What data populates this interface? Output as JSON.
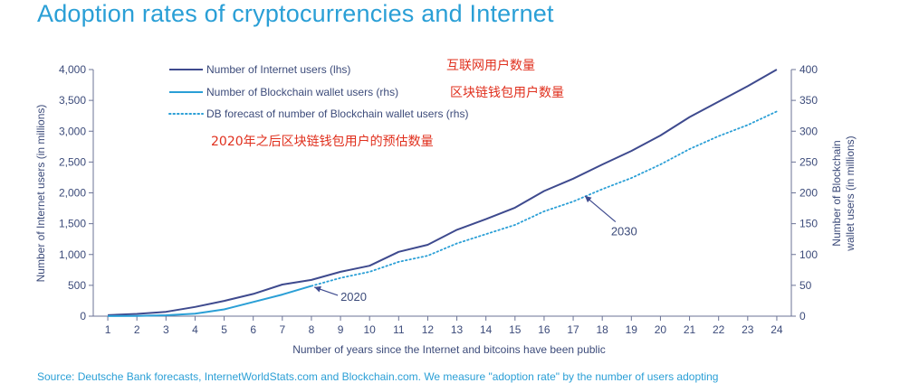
{
  "chart_data": {
    "type": "line",
    "title": "Adoption rates of cryptocurrencies and Internet",
    "xlabel": "Number of years since the Internet and bitcoins have been public",
    "ylabel_left": "Number of Internet users (in millions)",
    "ylabel_right_lines": [
      "Number of Blockchain",
      "wallet users (in millions)"
    ],
    "x": [
      1,
      2,
      3,
      4,
      5,
      6,
      7,
      8,
      9,
      10,
      11,
      12,
      13,
      14,
      15,
      16,
      17,
      18,
      19,
      20,
      21,
      22,
      23,
      24
    ],
    "y_left_lim": [
      0,
      4000
    ],
    "y_left_ticks": [
      "0",
      "500",
      "1,000",
      "1,500",
      "2,000",
      "2,500",
      "3,000",
      "3,500",
      "4,000"
    ],
    "y_right_lim": [
      0,
      400
    ],
    "y_right_ticks": [
      "0",
      "50",
      "100",
      "150",
      "200",
      "250",
      "300",
      "350",
      "400"
    ],
    "grid": false,
    "legend_position": "top-left",
    "series": [
      {
        "name": "Number of Internet users (lhs)",
        "axis": "left",
        "style": "solid",
        "color": "#3e4a8e",
        "x": [
          1,
          2,
          3,
          4,
          5,
          6,
          7,
          8,
          9,
          10,
          11,
          12,
          13,
          14,
          15,
          16,
          17,
          18,
          19,
          20,
          21,
          22,
          23,
          24
        ],
        "values": [
          16,
          36,
          70,
          150,
          248,
          361,
          513,
          587,
          719,
          817,
          1043,
          1158,
          1400,
          1574,
          1760,
          2030,
          2230,
          2460,
          2680,
          2930,
          3230,
          3480,
          3730,
          4000
        ]
      },
      {
        "name": "Number of Blockchain wallet users (rhs)",
        "axis": "right",
        "style": "solid",
        "color": "#2a9fd6",
        "x": [
          1,
          2,
          3,
          4,
          5,
          6,
          7,
          8
        ],
        "values": [
          0.1,
          0.5,
          1.5,
          4,
          11,
          23,
          35,
          49
        ]
      },
      {
        "name": "DB forecast of number of Blockchain wallet users (rhs)",
        "axis": "right",
        "style": "dotted",
        "color": "#2a9fd6",
        "x": [
          8,
          9,
          10,
          11,
          12,
          13,
          14,
          15,
          16,
          17,
          18,
          19,
          20,
          21,
          22,
          23,
          24
        ],
        "values": [
          49,
          62,
          72,
          88,
          98,
          118,
          133,
          148,
          170,
          186,
          206,
          224,
          246,
          271,
          292,
          310,
          332
        ]
      }
    ],
    "annotations": [
      {
        "text": "2020",
        "x": 9,
        "y_right": 25,
        "target_x": 8.1,
        "target_y_right": 47
      },
      {
        "text": "2030",
        "x": 18.3,
        "y_right": 131,
        "target_x": 17.4,
        "target_y_right": 195
      }
    ],
    "notes": [
      "互联网用户数量",
      "区块链钱包用户数量",
      "2020年之后区块链钱包用户的预估数量"
    ]
  },
  "footer": {
    "source": "Source: Deutsche Bank forecasts, InternetWorldStats.com and Blockchain.com. We measure \"adoption rate\" by the number of users adopting"
  }
}
